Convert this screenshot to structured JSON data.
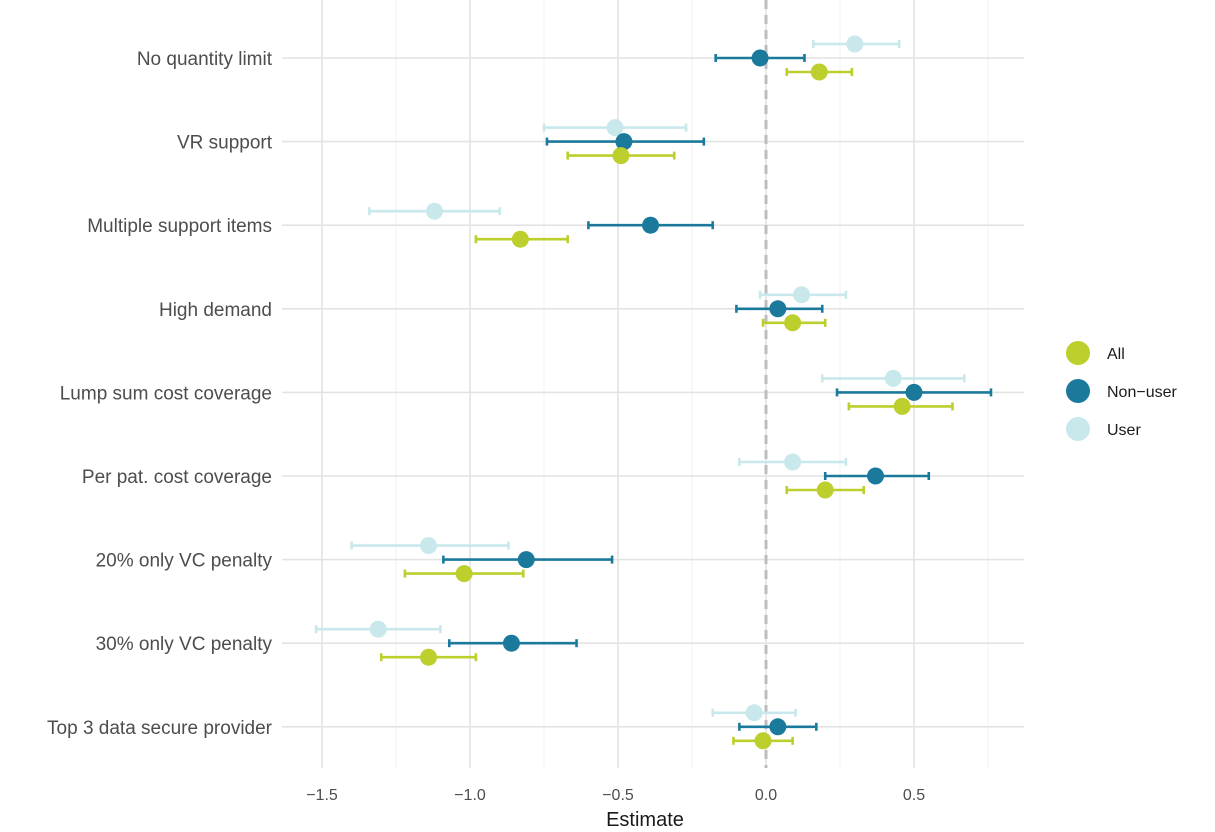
{
  "chart_data": {
    "type": "scatter",
    "subtype": "dot-and-whisker",
    "xlabel": "Estimate",
    "ylabel": "",
    "xlim": [
      -1.52,
      0.88
    ],
    "xticks": [
      -1.5,
      -1.0,
      -0.5,
      0.0,
      0.5
    ],
    "xtick_labels": [
      "−1.5",
      "−1.0",
      "−0.5",
      "0.0",
      "0.5"
    ],
    "reference_line": {
      "x": 0,
      "style": "dashed",
      "color": "#bdbdbd"
    },
    "grid": true,
    "legend_position": "right",
    "categories": [
      "No quantity limit",
      "VR support",
      "Multiple support items",
      "High demand",
      "Lump sum cost coverage",
      "Per pat. cost coverage",
      "20% only VC penalty",
      "30% only VC penalty",
      "Top 3 data secure provider"
    ],
    "series": [
      {
        "name": "User",
        "color": "#c9e8ec",
        "estimate": [
          0.3,
          -0.51,
          -1.12,
          0.12,
          0.43,
          0.09,
          -1.14,
          -1.31,
          -0.04
        ],
        "ci_low": [
          0.16,
          -0.75,
          -1.34,
          -0.02,
          0.19,
          -0.09,
          -1.4,
          -1.52,
          -0.18
        ],
        "ci_high": [
          0.45,
          -0.27,
          -0.9,
          0.27,
          0.67,
          0.27,
          -0.87,
          -1.1,
          0.1
        ]
      },
      {
        "name": "Non−user",
        "color": "#1b7a9c",
        "estimate": [
          -0.02,
          -0.48,
          -0.39,
          0.04,
          0.5,
          0.37,
          -0.81,
          -0.86,
          0.04
        ],
        "ci_low": [
          -0.17,
          -0.74,
          -0.6,
          -0.1,
          0.24,
          0.2,
          -1.09,
          -1.07,
          -0.09
        ],
        "ci_high": [
          0.13,
          -0.21,
          -0.18,
          0.19,
          0.76,
          0.55,
          -0.52,
          -0.64,
          0.17
        ]
      },
      {
        "name": "All",
        "color": "#bccf2c",
        "estimate": [
          0.18,
          -0.49,
          -0.83,
          0.09,
          0.46,
          0.2,
          -1.02,
          -1.14,
          -0.01
        ],
        "ci_low": [
          0.07,
          -0.67,
          -0.98,
          -0.01,
          0.28,
          0.07,
          -1.22,
          -1.3,
          -0.11
        ],
        "ci_high": [
          0.29,
          -0.31,
          -0.67,
          0.2,
          0.63,
          0.33,
          -0.82,
          -0.98,
          0.09
        ]
      }
    ],
    "legend": [
      {
        "name": "All",
        "color": "#bccf2c"
      },
      {
        "name": "Non−user",
        "color": "#1b7a9c"
      },
      {
        "name": "User",
        "color": "#c9e8ec"
      }
    ]
  }
}
